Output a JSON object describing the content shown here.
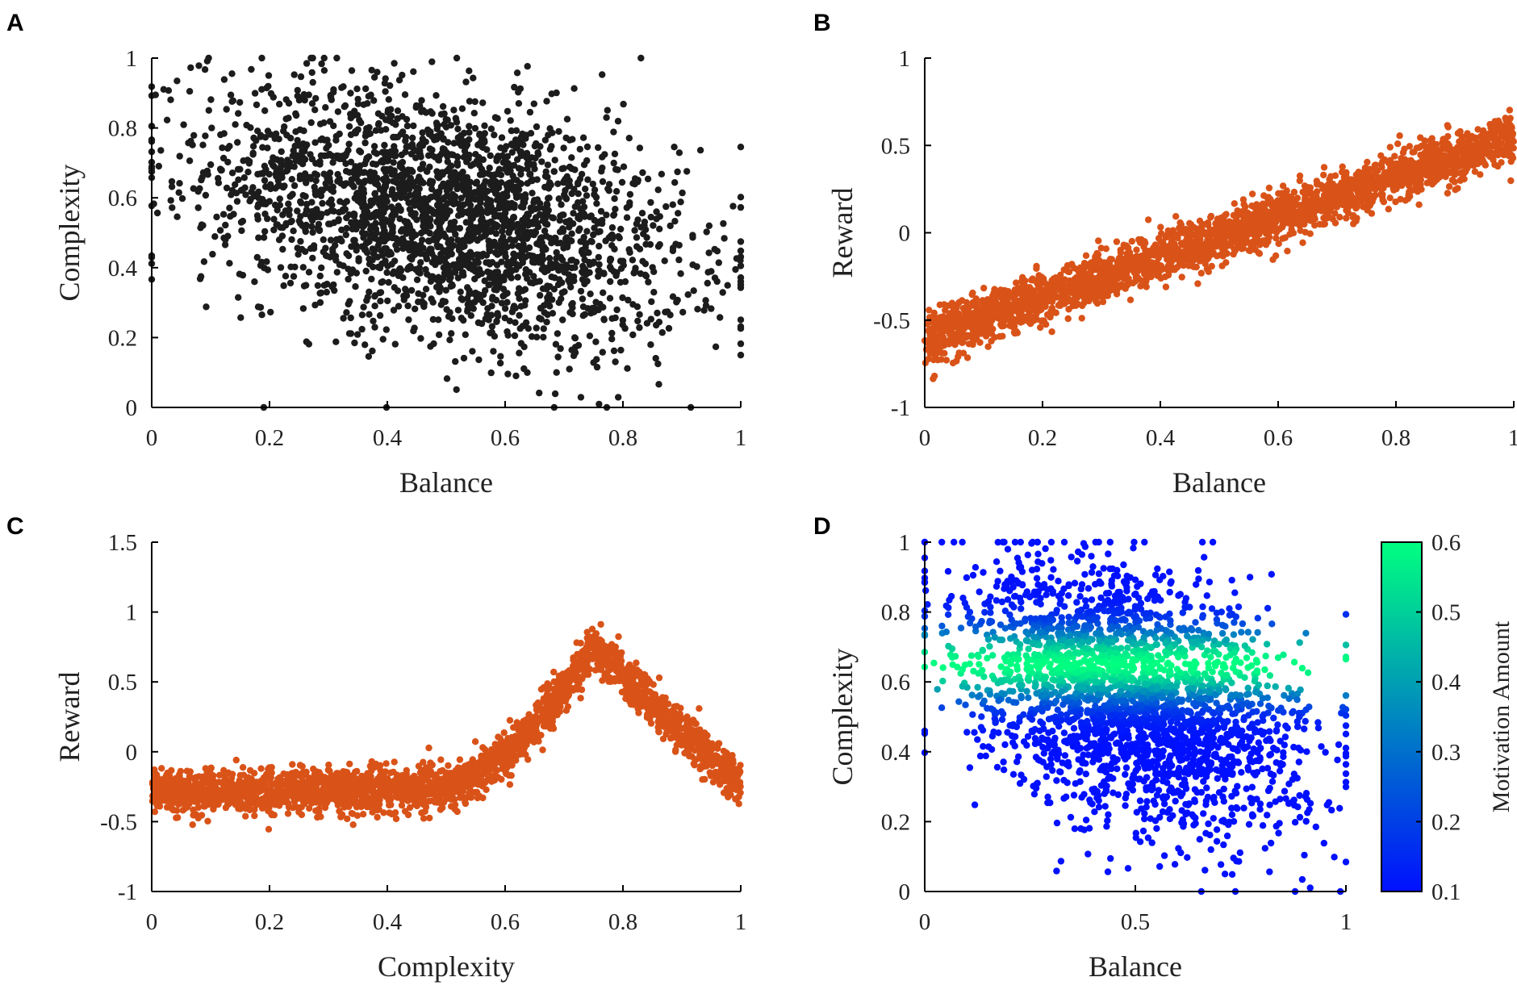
{
  "chart_data": [
    {
      "panel": "A",
      "type": "scatter",
      "title": "",
      "xlabel": "Balance",
      "ylabel": "Complexity",
      "xlim": [
        0,
        1
      ],
      "ylim": [
        0,
        1
      ],
      "xticks": [
        0,
        0.2,
        0.4,
        0.6,
        0.8,
        1
      ],
      "yticks": [
        0,
        0.2,
        0.4,
        0.6,
        0.8,
        1
      ],
      "xtick_labels": [
        "0",
        "0.2",
        "0.4",
        "0.6",
        "0.8",
        "1"
      ],
      "ytick_labels": [
        "0",
        "0.2",
        "0.4",
        "0.6",
        "0.8",
        "1"
      ],
      "point_color": "#1c1c1c",
      "distribution": {
        "x_mean": 0.5,
        "x_sd": 0.2,
        "y_mean": 0.55,
        "y_sd": 0.17,
        "slope": -0.35,
        "n": 2600
      }
    },
    {
      "panel": "B",
      "type": "scatter",
      "title": "",
      "xlabel": "Balance",
      "ylabel": "Reward",
      "xlim": [
        0,
        1
      ],
      "ylim": [
        -1,
        1
      ],
      "xticks": [
        0,
        0.2,
        0.4,
        0.6,
        0.8,
        1
      ],
      "yticks": [
        -1,
        -0.5,
        0,
        0.5,
        1
      ],
      "xtick_labels": [
        "0",
        "0.2",
        "0.4",
        "0.6",
        "0.8",
        "1"
      ],
      "ytick_labels": [
        "-1",
        "-0.5",
        "0",
        "0.5",
        "1"
      ],
      "point_color": "#d95319",
      "distribution": {
        "intercept": -0.6,
        "slope": 1.15,
        "noise_sd": 0.07,
        "n": 2600
      }
    },
    {
      "panel": "C",
      "type": "scatter",
      "title": "",
      "xlabel": "Complexity",
      "ylabel": "Reward",
      "xlim": [
        0,
        1
      ],
      "ylim": [
        -1,
        1.5
      ],
      "xticks": [
        0,
        0.2,
        0.4,
        0.6,
        0.8,
        1
      ],
      "yticks": [
        -1,
        -0.5,
        0,
        0.5,
        1,
        1.5
      ],
      "xtick_labels": [
        "0",
        "0.2",
        "0.4",
        "0.6",
        "0.8",
        "1"
      ],
      "ytick_labels": [
        "-1",
        "-0.5",
        "0",
        "0.5",
        "1",
        "1.5"
      ],
      "point_color": "#d95319",
      "distribution": {
        "baseline": -0.3,
        "peak_x": 0.75,
        "peak_y": 0.75,
        "end_y": -0.25,
        "noise_sd": 0.08,
        "n": 2600
      }
    },
    {
      "panel": "D",
      "type": "scatter",
      "title": "",
      "xlabel": "Balance",
      "ylabel": "Complexity",
      "xlim": [
        0,
        1
      ],
      "ylim": [
        0,
        1
      ],
      "xticks": [
        0,
        0.5,
        1
      ],
      "yticks": [
        0,
        0.2,
        0.4,
        0.6,
        0.8,
        1
      ],
      "xtick_labels": [
        "0",
        "0.5",
        "1"
      ],
      "ytick_labels": [
        "0",
        "0.2",
        "0.4",
        "0.6",
        "0.8",
        "1"
      ],
      "colorbar": {
        "label": "Motivation Amount",
        "range": [
          0.1,
          0.6
        ],
        "ticks": [
          0.1,
          0.2,
          0.3,
          0.4,
          0.5,
          0.6
        ],
        "tick_labels": [
          "0.1",
          "0.2",
          "0.3",
          "0.4",
          "0.5",
          "0.6"
        ],
        "color_low": "#0010ff",
        "color_high": "#00ff80"
      },
      "color_peak_complexity": 0.65,
      "distribution": {
        "x_mean": 0.5,
        "x_sd": 0.2,
        "y_mean": 0.55,
        "y_sd": 0.17,
        "slope": -0.35,
        "n": 2600
      }
    }
  ],
  "panels": {
    "A": {
      "letter": "A"
    },
    "B": {
      "letter": "B"
    },
    "C": {
      "letter": "C"
    },
    "D": {
      "letter": "D"
    }
  }
}
